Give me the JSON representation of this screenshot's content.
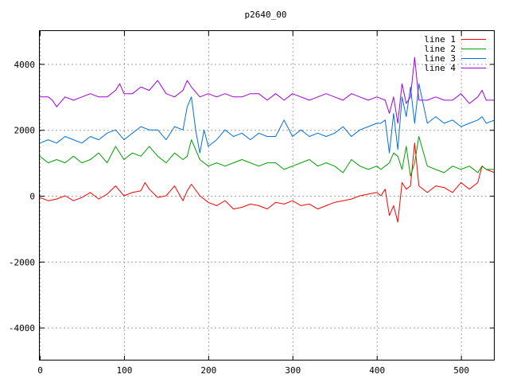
{
  "chart_data": {
    "type": "line",
    "title": "p2640_00",
    "xlabel": "",
    "ylabel": "",
    "xlim": [
      0,
      540
    ],
    "ylim": [
      -5000,
      5000
    ],
    "xticks": [
      0,
      100,
      200,
      300,
      400,
      500
    ],
    "yticks": [
      -4000,
      -2000,
      0,
      2000,
      4000
    ],
    "grid": true,
    "legend_position": "top-right",
    "series": [
      {
        "name": "line 1",
        "color": "#ff0000",
        "x": [
          0,
          10,
          20,
          30,
          40,
          50,
          60,
          70,
          80,
          90,
          100,
          110,
          120,
          125,
          130,
          140,
          150,
          160,
          170,
          175,
          180,
          190,
          200,
          210,
          220,
          230,
          240,
          250,
          260,
          270,
          280,
          290,
          300,
          310,
          320,
          330,
          340,
          350,
          360,
          370,
          380,
          390,
          400,
          405,
          410,
          415,
          420,
          425,
          430,
          435,
          440,
          445,
          450,
          460,
          470,
          480,
          490,
          500,
          510,
          520,
          525,
          530,
          540
        ],
        "y": [
          -50,
          -150,
          -100,
          0,
          -150,
          -50,
          100,
          -100,
          50,
          300,
          0,
          100,
          150,
          400,
          200,
          -50,
          0,
          300,
          -150,
          150,
          350,
          0,
          -200,
          -300,
          -150,
          -400,
          -350,
          -250,
          -300,
          -400,
          -200,
          -250,
          -150,
          -300,
          -250,
          -400,
          -300,
          -200,
          -150,
          -100,
          0,
          50,
          100,
          0,
          200,
          -600,
          -300,
          -800,
          400,
          200,
          300,
          1600,
          300,
          100,
          300,
          250,
          100,
          400,
          200,
          400,
          900,
          800,
          700
        ]
      },
      {
        "name": "line 2",
        "color": "#00a000",
        "x": [
          0,
          10,
          20,
          30,
          40,
          50,
          60,
          70,
          80,
          90,
          100,
          110,
          120,
          130,
          140,
          150,
          160,
          170,
          175,
          180,
          190,
          200,
          210,
          220,
          230,
          240,
          250,
          260,
          270,
          280,
          290,
          300,
          310,
          320,
          330,
          340,
          350,
          360,
          370,
          380,
          390,
          400,
          405,
          410,
          415,
          420,
          425,
          430,
          435,
          440,
          445,
          450,
          460,
          470,
          480,
          490,
          500,
          510,
          520,
          525,
          530,
          540
        ],
        "y": [
          1200,
          1000,
          1100,
          1000,
          1200,
          1000,
          1100,
          1300,
          1000,
          1500,
          1100,
          1300,
          1200,
          1500,
          1200,
          1000,
          1300,
          1100,
          1200,
          1700,
          1100,
          900,
          1000,
          900,
          1000,
          1100,
          1000,
          900,
          1000,
          1000,
          800,
          900,
          1000,
          1100,
          900,
          1000,
          900,
          700,
          1100,
          900,
          800,
          900,
          800,
          900,
          1000,
          1300,
          1200,
          800,
          1500,
          600,
          1000,
          1800,
          900,
          800,
          700,
          900,
          800,
          900,
          700,
          900,
          800,
          800
        ]
      },
      {
        "name": "line 3",
        "color": "#0070e0",
        "x": [
          0,
          10,
          20,
          30,
          40,
          50,
          60,
          70,
          80,
          90,
          100,
          110,
          120,
          130,
          140,
          150,
          160,
          170,
          175,
          180,
          185,
          190,
          195,
          200,
          210,
          220,
          230,
          240,
          250,
          260,
          270,
          280,
          290,
          300,
          310,
          320,
          330,
          340,
          350,
          360,
          370,
          380,
          390,
          400,
          405,
          410,
          415,
          420,
          425,
          430,
          435,
          440,
          445,
          450,
          460,
          470,
          480,
          490,
          500,
          510,
          520,
          525,
          530,
          540
        ],
        "y": [
          1600,
          1700,
          1600,
          1800,
          1700,
          1600,
          1800,
          1700,
          1900,
          2000,
          1700,
          1900,
          2100,
          2000,
          2000,
          1700,
          2100,
          2000,
          2700,
          3000,
          2000,
          1300,
          2000,
          1500,
          1700,
          2000,
          1800,
          1900,
          1700,
          1900,
          1800,
          1800,
          2300,
          1800,
          2000,
          1800,
          1900,
          1800,
          1900,
          2100,
          1800,
          2000,
          2100,
          2200,
          2200,
          2300,
          1300,
          2500,
          1400,
          3000,
          2400,
          3300,
          2200,
          3400,
          2200,
          2400,
          2200,
          2300,
          2100,
          2200,
          2300,
          2400,
          2200,
          2300
        ]
      },
      {
        "name": "line 4",
        "color": "#a000e0",
        "x": [
          0,
          10,
          15,
          20,
          30,
          40,
          50,
          60,
          70,
          80,
          90,
          95,
          100,
          110,
          120,
          130,
          140,
          150,
          160,
          170,
          175,
          180,
          190,
          200,
          210,
          220,
          230,
          240,
          250,
          260,
          270,
          280,
          290,
          300,
          310,
          320,
          330,
          340,
          350,
          360,
          370,
          380,
          390,
          400,
          410,
          415,
          420,
          425,
          430,
          435,
          440,
          445,
          450,
          460,
          470,
          480,
          490,
          500,
          510,
          520,
          525,
          530,
          540
        ],
        "y": [
          3000,
          3000,
          2900,
          2700,
          3000,
          2900,
          3000,
          3100,
          3000,
          3000,
          3200,
          3400,
          3100,
          3100,
          3300,
          3200,
          3500,
          3100,
          3000,
          3200,
          3500,
          3300,
          3000,
          3100,
          3000,
          3100,
          3000,
          3000,
          3100,
          3100,
          2900,
          3100,
          2900,
          3100,
          3000,
          2900,
          3000,
          3100,
          3000,
          2900,
          3100,
          3000,
          2900,
          3000,
          2900,
          2500,
          3000,
          2200,
          3400,
          2800,
          3000,
          4200,
          2900,
          2900,
          3000,
          2900,
          2900,
          3100,
          2800,
          3000,
          3200,
          2900,
          2900
        ]
      }
    ]
  }
}
